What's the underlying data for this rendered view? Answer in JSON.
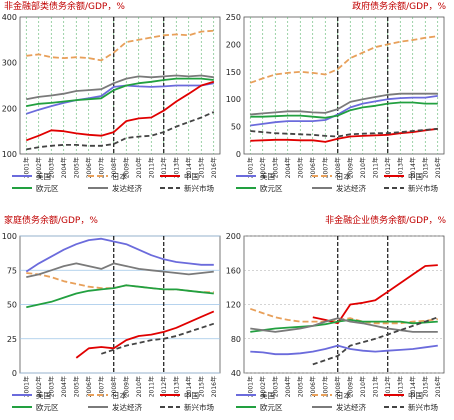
{
  "chart_data": [
    {
      "type": "line",
      "title": "非金融部类债务余额/GDP，%",
      "title_color": "#c00000",
      "title_align": "left",
      "x": [
        "2001年",
        "2002年",
        "2003年",
        "2004年",
        "2005年",
        "2006年",
        "2007年",
        "2008年",
        "2009年",
        "2010年",
        "2011年",
        "2012年",
        "2013年",
        "2014年",
        "2015年",
        "2016年"
      ],
      "ylim": [
        100,
        400
      ],
      "yticks": [
        100,
        200,
        300,
        400
      ],
      "vlines": [
        "2008年",
        "2012年"
      ],
      "grid": "vertical-dashed-green",
      "series": [
        {
          "name": "美国",
          "color": "#6b6bdc",
          "dash": "",
          "values": [
            188,
            197,
            205,
            212,
            218,
            222,
            227,
            247,
            250,
            248,
            247,
            248,
            250,
            250,
            250,
            255
          ]
        },
        {
          "name": "日本",
          "color": "#e8a05a",
          "dash": "6,3",
          "values": [
            315,
            318,
            312,
            310,
            312,
            310,
            305,
            322,
            345,
            350,
            355,
            360,
            362,
            360,
            368,
            370
          ]
        },
        {
          "name": "中国",
          "color": "#e00000",
          "dash": "",
          "values": [
            130,
            140,
            152,
            150,
            145,
            142,
            140,
            148,
            172,
            178,
            180,
            195,
            215,
            232,
            250,
            258
          ]
        },
        {
          "name": "欧元区",
          "color": "#22a040",
          "dash": "",
          "values": [
            205,
            210,
            212,
            215,
            218,
            220,
            222,
            240,
            250,
            255,
            258,
            262,
            265,
            265,
            265,
            262
          ]
        },
        {
          "name": "发达经济",
          "color": "#7a7a7a",
          "dash": "",
          "values": [
            220,
            225,
            228,
            232,
            238,
            240,
            242,
            255,
            265,
            270,
            268,
            270,
            272,
            270,
            272,
            268
          ]
        },
        {
          "name": "新兴市场",
          "color": "#444444",
          "dash": "5,3",
          "values": [
            110,
            115,
            118,
            120,
            120,
            118,
            118,
            122,
            135,
            138,
            140,
            148,
            160,
            170,
            180,
            192
          ]
        }
      ]
    },
    {
      "type": "line",
      "title": "政府债务余额/GDP，%",
      "title_color": "#c00000",
      "title_align": "right",
      "x": [
        "2001年",
        "2002年",
        "2003年",
        "2004年",
        "2005年",
        "2006年",
        "2007年",
        "2008年",
        "2009年",
        "2010年",
        "2011年",
        "2012年",
        "2013年",
        "2014年",
        "2015年",
        "2016年"
      ],
      "ylim": [
        0,
        250
      ],
      "yticks": [
        0,
        50,
        100,
        150,
        200,
        250
      ],
      "vlines": [
        "2008年",
        "2012年"
      ],
      "grid": "vertical-dashed-green",
      "series": [
        {
          "name": "美国",
          "color": "#6b6bdc",
          "dash": "",
          "values": [
            52,
            55,
            58,
            60,
            60,
            60,
            62,
            72,
            85,
            92,
            96,
            100,
            102,
            103,
            103,
            106
          ]
        },
        {
          "name": "日本",
          "color": "#e8a05a",
          "dash": "6,3",
          "values": [
            130,
            138,
            145,
            148,
            150,
            148,
            145,
            155,
            175,
            185,
            195,
            200,
            205,
            208,
            212,
            215
          ]
        },
        {
          "name": "中国",
          "color": "#e00000",
          "dash": "",
          "values": [
            24,
            25,
            26,
            26,
            25,
            25,
            22,
            28,
            32,
            33,
            34,
            35,
            38,
            40,
            43,
            46
          ]
        },
        {
          "name": "欧元区",
          "color": "#22a040",
          "dash": "",
          "values": [
            68,
            68,
            69,
            70,
            70,
            68,
            66,
            70,
            80,
            85,
            88,
            92,
            94,
            94,
            92,
            92
          ]
        },
        {
          "name": "发达经济",
          "color": "#7a7a7a",
          "dash": "",
          "values": [
            72,
            74,
            76,
            78,
            78,
            76,
            75,
            82,
            95,
            100,
            104,
            108,
            110,
            110,
            110,
            110
          ]
        },
        {
          "name": "新兴市场",
          "color": "#444444",
          "dash": "5,3",
          "values": [
            42,
            40,
            38,
            37,
            36,
            35,
            33,
            32,
            36,
            37,
            38,
            38,
            40,
            42,
            44,
            46
          ]
        }
      ]
    },
    {
      "type": "line",
      "title": "家庭债务余额/GDP，%",
      "title_color": "#c00000",
      "title_align": "left",
      "x": [
        "2001年",
        "2002年",
        "2003年",
        "2004年",
        "2005年",
        "2006年",
        "2007年",
        "2008年",
        "2009年",
        "2010年",
        "2011年",
        "2012年",
        "2013年",
        "2014年",
        "2015年",
        "2016年"
      ],
      "ylim": [
        0,
        100
      ],
      "yticks": [
        0,
        25,
        50,
        75,
        100
      ],
      "vlines": [
        "2008年",
        "2012年"
      ],
      "grid": "horizontal-solid-blue",
      "series": [
        {
          "name": "美国",
          "color": "#6b6bdc",
          "dash": "",
          "values": [
            74,
            80,
            85,
            90,
            94,
            97,
            98,
            96,
            94,
            90,
            86,
            83,
            81,
            80,
            79,
            79
          ]
        },
        {
          "name": "日本",
          "color": "#e8a05a",
          "dash": "6,3",
          "values": [
            73,
            72,
            70,
            67,
            65,
            63,
            62,
            62,
            64,
            63,
            62,
            61,
            61,
            60,
            59,
            59
          ]
        },
        {
          "name": "中国",
          "color": "#e00000",
          "dash": "",
          "values": [
            null,
            null,
            null,
            null,
            11,
            18,
            19,
            18,
            24,
            27,
            28,
            30,
            33,
            37,
            41,
            45
          ]
        },
        {
          "name": "欧元区",
          "color": "#22a040",
          "dash": "",
          "values": [
            48,
            50,
            52,
            55,
            58,
            60,
            61,
            62,
            64,
            63,
            62,
            61,
            61,
            60,
            59,
            58
          ]
        },
        {
          "name": "发达经济",
          "color": "#7a7a7a",
          "dash": "",
          "values": [
            70,
            72,
            75,
            78,
            80,
            78,
            76,
            80,
            78,
            76,
            75,
            74,
            73,
            72,
            73,
            74
          ]
        },
        {
          "name": "新兴市场",
          "color": "#444444",
          "dash": "5,3",
          "values": [
            null,
            null,
            null,
            null,
            null,
            null,
            14,
            17,
            20,
            22,
            24,
            25,
            27,
            30,
            33,
            36
          ]
        }
      ]
    },
    {
      "type": "line",
      "title": "非金融企业债务余额/GDP，%",
      "title_color": "#c00000",
      "title_align": "right",
      "x": [
        "2001年",
        "2002年",
        "2003年",
        "2004年",
        "2005年",
        "2006年",
        "2007年",
        "2008年",
        "2009年",
        "2010年",
        "2011年",
        "2012年",
        "2013年",
        "2014年",
        "2015年",
        "2016年"
      ],
      "ylim": [
        40,
        200
      ],
      "yticks": [
        40,
        80,
        120,
        160,
        200
      ],
      "vlines": [
        "2008年",
        "2012年"
      ],
      "grid": "horizontal-dashed-gray",
      "series": [
        {
          "name": "美国",
          "color": "#6b6bdc",
          "dash": "",
          "values": [
            65,
            64,
            62,
            62,
            63,
            65,
            68,
            72,
            68,
            66,
            65,
            66,
            67,
            68,
            70,
            72
          ]
        },
        {
          "name": "日本",
          "color": "#e8a05a",
          "dash": "6,3",
          "values": [
            115,
            110,
            105,
            102,
            100,
            100,
            100,
            102,
            104,
            100,
            98,
            98,
            98,
            100,
            101,
            103
          ]
        },
        {
          "name": "中国",
          "color": "#e00000",
          "dash": "",
          "values": [
            null,
            null,
            null,
            null,
            null,
            105,
            102,
            98,
            120,
            122,
            125,
            135,
            145,
            155,
            165,
            166
          ]
        },
        {
          "name": "欧元区",
          "color": "#22a040",
          "dash": "",
          "values": [
            88,
            90,
            92,
            93,
            94,
            95,
            97,
            100,
            102,
            100,
            100,
            100,
            100,
            98,
            99,
            100
          ]
        },
        {
          "name": "发达经济",
          "color": "#7a7a7a",
          "dash": "",
          "values": [
            92,
            90,
            88,
            90,
            92,
            95,
            100,
            104,
            100,
            98,
            95,
            92,
            90,
            88,
            88,
            88
          ]
        },
        {
          "name": "新兴市场",
          "color": "#444444",
          "dash": "5,3",
          "values": [
            null,
            null,
            null,
            null,
            null,
            50,
            55,
            60,
            72,
            76,
            80,
            85,
            90,
            95,
            100,
            105
          ]
        }
      ]
    }
  ]
}
